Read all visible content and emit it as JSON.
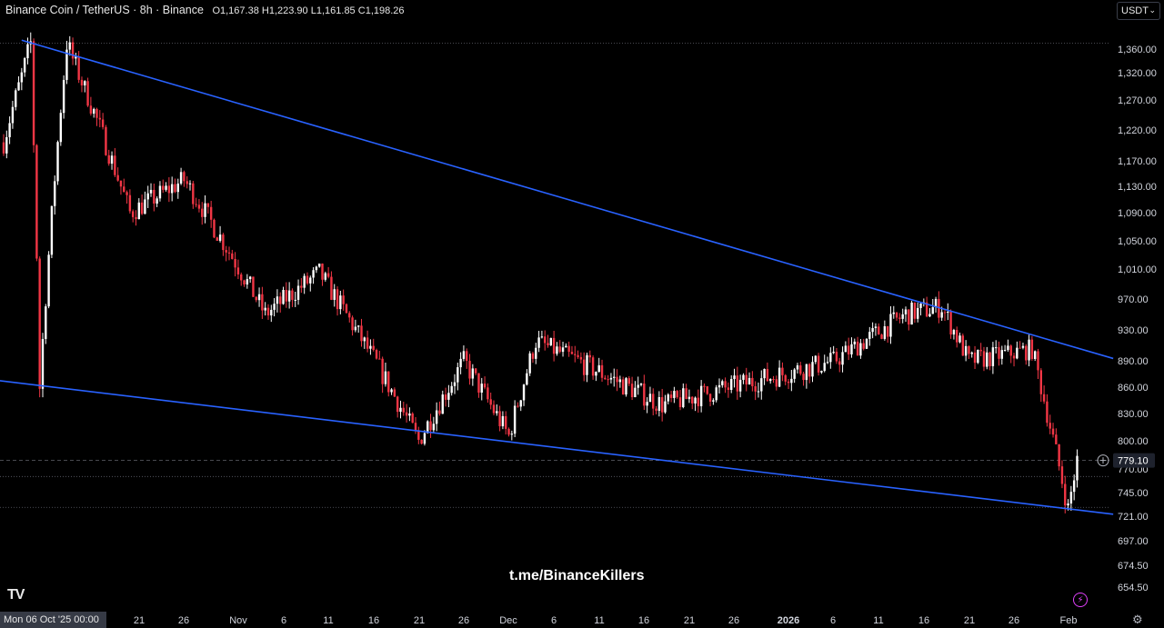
{
  "header": {
    "symbol": "Binance Coin / TetherUS · 8h · Binance",
    "open_label": "O",
    "open": "1,167.38",
    "high_label": "H",
    "high": "1,223.90",
    "low_label": "L",
    "low": "1,161.85",
    "close_label": "C",
    "close": "1,198.26"
  },
  "currency_select": {
    "value": "USDT",
    "icon": "chevron-down-icon"
  },
  "watermark": "t.me/BinanceKillers",
  "logo": "TV",
  "crosshair_date": "Mon 06 Oct '25   00:00",
  "settings_icon": "gear-icon",
  "alert_icon": "bolt-icon",
  "chart_data": {
    "type": "candlestick",
    "title": "Binance Coin / TetherUS · 8h · Binance",
    "y_ticks": [
      "1,360.00",
      "1,320.00",
      "1,270.00",
      "1,220.00",
      "1,170.00",
      "1,130.00",
      "1,090.00",
      "1,050.00",
      "1,010.00",
      "970.00",
      "930.00",
      "890.00",
      "860.00",
      "830.00",
      "800.00",
      "770.00",
      "745.00",
      "721.00",
      "697.00",
      "674.50",
      "654.50"
    ],
    "x_ticks": [
      "21",
      "26",
      "Nov",
      "6",
      "11",
      "16",
      "21",
      "26",
      "Dec",
      "6",
      "11",
      "16",
      "21",
      "26",
      "2026",
      "6",
      "11",
      "16",
      "21",
      "26",
      "Feb"
    ],
    "bold_x_ticks": [
      "2026"
    ],
    "current_price": "779.10",
    "colors": {
      "up": "#ffffff",
      "down": "#f23645",
      "trendline": "#2962ff",
      "price_line": "#787b86"
    },
    "key_points": [
      {
        "date": "2025-10-06",
        "close": 1200
      },
      {
        "date": "2025-10-09",
        "high": 1370
      },
      {
        "date": "2025-10-10",
        "low": 860
      },
      {
        "date": "2025-10-13",
        "high": 1370
      },
      {
        "date": "2025-10-20",
        "close": 1090
      },
      {
        "date": "2025-10-26",
        "close": 1140
      },
      {
        "date": "2025-11-04",
        "close": 950
      },
      {
        "date": "2025-11-10",
        "close": 1005
      },
      {
        "date": "2025-11-21",
        "low": 800
      },
      {
        "date": "2025-11-26",
        "close": 890
      },
      {
        "date": "2025-12-01",
        "low": 805
      },
      {
        "date": "2025-12-04",
        "close": 915
      },
      {
        "date": "2025-12-18",
        "close": 840
      },
      {
        "date": "2026-01-06",
        "close": 890
      },
      {
        "date": "2026-01-14",
        "close": 950
      },
      {
        "date": "2026-01-18",
        "high": 960
      },
      {
        "date": "2026-01-21",
        "close": 890
      },
      {
        "date": "2026-01-28",
        "close": 905
      },
      {
        "date": "2026-02-01",
        "low": 728
      },
      {
        "date": "2026-02-02",
        "close": 779.1
      }
    ],
    "trendlines": [
      {
        "name": "upper",
        "from": {
          "date": "2025-10-08",
          "price": 1375
        },
        "to": {
          "date": "2026-02-06",
          "price": 893
        }
      },
      {
        "name": "lower",
        "from": {
          "date": "2025-10-05",
          "price": 868
        },
        "to": {
          "date": "2026-02-06",
          "price": 723
        }
      }
    ],
    "horizontal_levels": [
      1370,
      779.1,
      762,
      730
    ],
    "grid": false
  }
}
